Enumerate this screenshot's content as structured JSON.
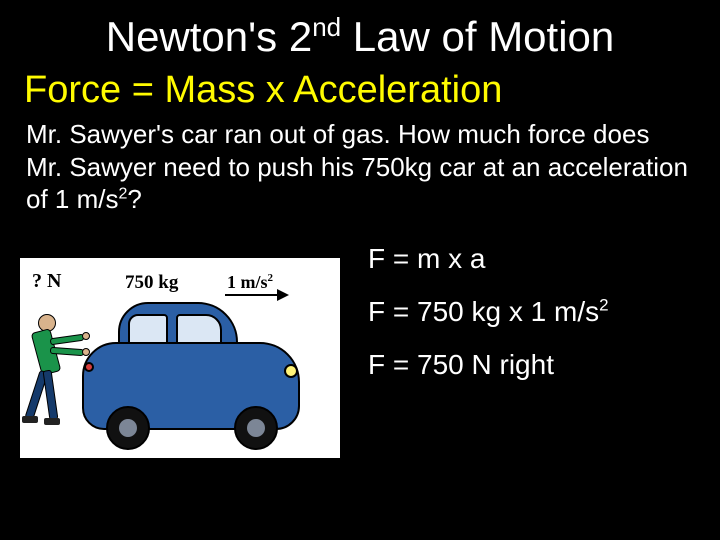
{
  "title_html": "Newton's 2<sup>nd</sup> Law of Motion",
  "formula_title": "Force = Mass x Acceleration",
  "problem_html": "Mr. Sawyer's car ran out of gas. How much force does Mr. Sawyer need to push his 750kg car at an acceleration of 1 m/s<sup>2</sup>?",
  "equations": {
    "line1": "F = m x a",
    "line2_html": "F = 750 kg x 1 m/s<sup>2</sup>",
    "line3": "F = 750 N right"
  },
  "diagram": {
    "force_label": "? N",
    "mass_label": "750 kg",
    "accel_label_html": "1 m/s<sup>2</sup>",
    "car_color": "#2b5fa5",
    "person_shirt_color": "#1a934a",
    "person_pants_color": "#153a6b",
    "background": "#ffffff"
  },
  "colors": {
    "slide_background": "#000000",
    "title_color": "#ffffff",
    "formula_color": "#fffb00",
    "body_text_color": "#ffffff"
  }
}
